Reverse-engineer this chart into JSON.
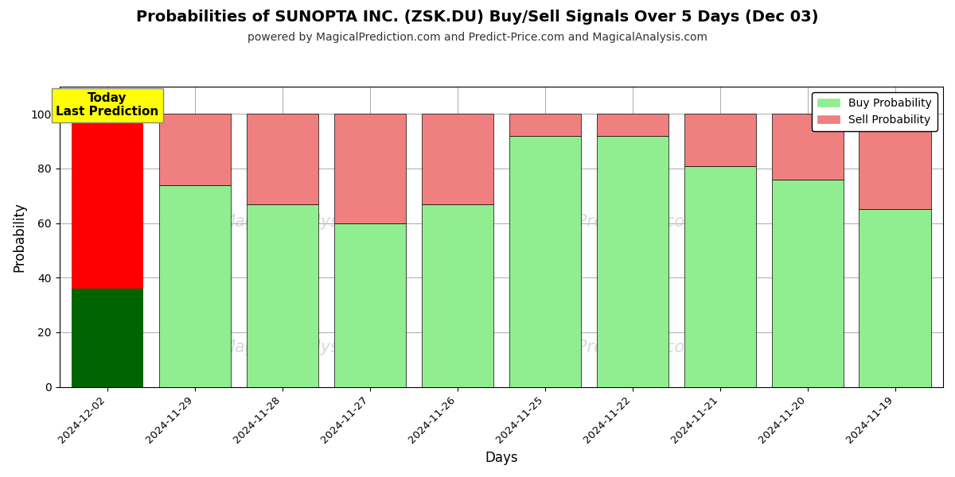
{
  "title": "Probabilities of SUNOPTA INC. (ZSK.DU) Buy/Sell Signals Over 5 Days (Dec 03)",
  "subtitle": "powered by MagicalPrediction.com and Predict-Price.com and MagicalAnalysis.com",
  "xlabel": "Days",
  "ylabel": "Probability",
  "categories": [
    "2024-12-02",
    "2024-11-29",
    "2024-11-28",
    "2024-11-27",
    "2024-11-26",
    "2024-11-25",
    "2024-11-22",
    "2024-11-21",
    "2024-11-20",
    "2024-11-19"
  ],
  "buy_values": [
    36,
    74,
    67,
    60,
    67,
    92,
    92,
    81,
    76,
    65
  ],
  "sell_values": [
    64,
    26,
    33,
    40,
    33,
    8,
    8,
    19,
    24,
    35
  ],
  "today_buy_color": "#006400",
  "today_sell_color": "#ff0000",
  "buy_color": "#90EE90",
  "sell_color": "#F08080",
  "today_label": "Today\nLast Prediction",
  "today_label_bg": "#ffff00",
  "legend_buy": "Buy Probability",
  "legend_sell": "Sell Probability",
  "ylim": [
    0,
    110
  ],
  "yticks": [
    0,
    20,
    40,
    60,
    80,
    100
  ],
  "dashed_line_y": 110,
  "watermarks": [
    "MagicalAnalysis.com",
    "MagicalPrediction.com"
  ],
  "bg_color": "#ffffff",
  "grid_color": "#aaaaaa"
}
